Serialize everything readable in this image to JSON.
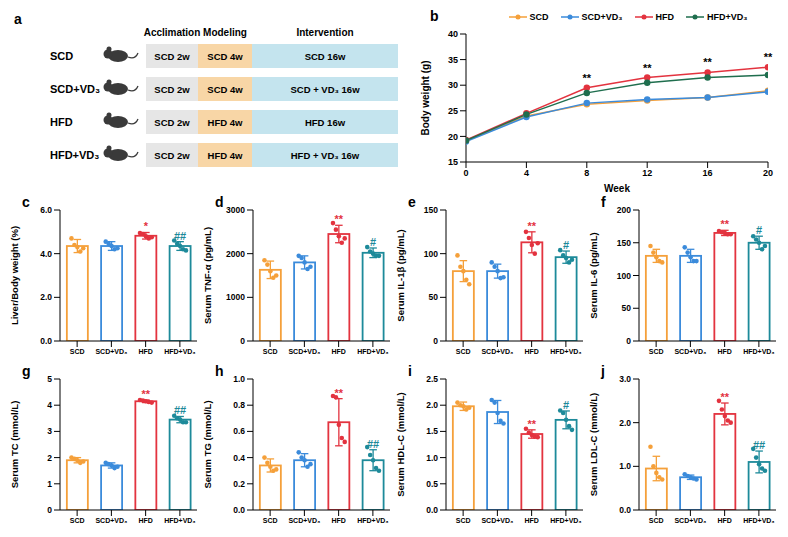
{
  "diagram": {
    "panel_label": "a",
    "headers": [
      "Acclimation",
      "Modeling",
      "Intervention"
    ],
    "rows": [
      {
        "group": "SCD",
        "stages": [
          "SCD 2w",
          "SCD 4w",
          "SCD 16w"
        ]
      },
      {
        "group": "SCD+VD₃",
        "stages": [
          "SCD 2w",
          "SCD 4w",
          "SCD + VD₃ 16w"
        ]
      },
      {
        "group": "HFD",
        "stages": [
          "SCD 2w",
          "HFD 4w",
          "HFD 16w"
        ]
      },
      {
        "group": "HFD+VD₃",
        "stages": [
          "SCD 2w",
          "HFD 4w",
          "HFD + VD₃ 16w"
        ]
      }
    ]
  },
  "chart_data": [
    {
      "panel_label": "b",
      "type": "line",
      "x_label": "Week",
      "y_label": "Body weight (g)",
      "x": [
        0,
        4,
        8,
        12,
        16,
        20
      ],
      "xlim": [
        0,
        20
      ],
      "xticks": [
        0,
        4,
        8,
        12,
        16,
        20
      ],
      "ylim": [
        15,
        40
      ],
      "yticks": [
        15,
        20,
        25,
        30,
        35,
        40
      ],
      "legend": "top",
      "marker": "circle",
      "series": [
        {
          "name": "SCD",
          "color": "#f5a03a",
          "values": [
            19.2,
            24.0,
            26.3,
            27.0,
            27.6,
            28.9
          ]
        },
        {
          "name": "SCD+VD₃",
          "color": "#3b8bdb",
          "values": [
            19.0,
            23.8,
            26.5,
            27.2,
            27.6,
            28.7
          ]
        },
        {
          "name": "HFD",
          "color": "#e3333f",
          "values": [
            19.3,
            24.5,
            29.5,
            31.5,
            32.5,
            33.5
          ]
        },
        {
          "name": "HFD+VD₃",
          "color": "#1f6e4e",
          "values": [
            19.2,
            24.3,
            28.5,
            30.5,
            31.5,
            32.0
          ]
        }
      ],
      "annotations": [
        {
          "x": 8,
          "text": "**"
        },
        {
          "x": 12,
          "text": "**"
        },
        {
          "x": 16,
          "text": "**"
        },
        {
          "x": 20,
          "text": "**"
        }
      ]
    },
    {
      "panel_label": "c",
      "type": "bar",
      "y_label": "Liver/Body weight (%)",
      "categories": [
        "SCD",
        "SCD+VD₃",
        "HFD",
        "HFD+VD₃"
      ],
      "values": [
        4.35,
        4.35,
        4.82,
        4.35
      ],
      "errors": [
        0.3,
        0.2,
        0.15,
        0.2
      ],
      "points": [
        [
          4.7,
          4.4,
          4.3,
          4.1,
          4.25
        ],
        [
          4.55,
          4.45,
          4.35,
          4.2,
          4.25
        ],
        [
          4.95,
          4.9,
          4.8,
          4.7,
          4.75
        ],
        [
          4.6,
          4.45,
          4.35,
          4.2,
          4.15
        ]
      ],
      "colors": [
        "#f5a03a",
        "#3b8bdb",
        "#e3333f",
        "#1d8a9a"
      ],
      "annotations": [
        null,
        null,
        "*",
        "##"
      ],
      "ylim": [
        0,
        6
      ],
      "yticks": [
        {
          "value": 0,
          "label": "0.0"
        },
        {
          "value": 2,
          "label": "2.0"
        },
        {
          "value": 4,
          "label": "4.0"
        },
        {
          "value": 6,
          "label": "6.0"
        }
      ]
    },
    {
      "panel_label": "d",
      "type": "bar",
      "y_label": "Serum TNF-α (pg/mL)",
      "categories": [
        "SCD",
        "SCD+VD₃",
        "HFD",
        "HFD+VD₃"
      ],
      "values": [
        1630,
        1800,
        2450,
        2020
      ],
      "errors": [
        200,
        150,
        200,
        110
      ],
      "points": [
        [
          1850,
          1750,
          1600,
          1450,
          1500
        ],
        [
          1950,
          1900,
          1800,
          1650,
          1700
        ],
        [
          2700,
          2550,
          2400,
          2250,
          2350
        ],
        [
          2150,
          2050,
          2000,
          1950,
          1950
        ]
      ],
      "colors": [
        "#f5a03a",
        "#3b8bdb",
        "#e3333f",
        "#1d8a9a"
      ],
      "annotations": [
        null,
        null,
        "**",
        "#"
      ],
      "ylim": [
        0,
        3000
      ],
      "yticks": [
        0,
        1000,
        2000,
        3000
      ]
    },
    {
      "panel_label": "e",
      "type": "bar",
      "y_label": "Serum IL-1β (pg/mL)",
      "categories": [
        "SCD",
        "SCD+VD₃",
        "HFD",
        "HFD+VD₃"
      ],
      "values": [
        80,
        80,
        113,
        96
      ],
      "errors": [
        12,
        8,
        12,
        7
      ],
      "points": [
        [
          98,
          85,
          80,
          70,
          65
        ],
        [
          90,
          85,
          80,
          72,
          73
        ],
        [
          125,
          118,
          110,
          100,
          112
        ],
        [
          104,
          98,
          95,
          90,
          93
        ]
      ],
      "colors": [
        "#f5a03a",
        "#3b8bdb",
        "#e3333f",
        "#1d8a9a"
      ],
      "annotations": [
        null,
        null,
        "**",
        "#"
      ],
      "ylim": [
        0,
        150
      ],
      "yticks": [
        0,
        50,
        100,
        150
      ]
    },
    {
      "panel_label": "f",
      "type": "bar",
      "y_label": "Serum IL-6 (pg/mL)",
      "categories": [
        "SCD",
        "SCD+VD₃",
        "HFD",
        "HFD+VD₃"
      ],
      "values": [
        130,
        130,
        165,
        150
      ],
      "errors": [
        10,
        10,
        4,
        10
      ],
      "points": [
        [
          145,
          135,
          128,
          122,
          120
        ],
        [
          143,
          135,
          128,
          122,
          122
        ],
        [
          168,
          166,
          165,
          163,
          163
        ],
        [
          160,
          155,
          150,
          140,
          145
        ]
      ],
      "colors": [
        "#f5a03a",
        "#3b8bdb",
        "#e3333f",
        "#1d8a9a"
      ],
      "annotations": [
        null,
        null,
        "**",
        "#"
      ],
      "ylim": [
        0,
        200
      ],
      "yticks": [
        0,
        50,
        100,
        150,
        200
      ]
    },
    {
      "panel_label": "g",
      "type": "bar",
      "y_label": "Serum TC (mmol/L)",
      "categories": [
        "SCD",
        "SCD+VD₃",
        "HFD",
        "HFD+VD₃"
      ],
      "values": [
        1.9,
        1.7,
        4.15,
        3.45
      ],
      "errors": [
        0.1,
        0.1,
        0.05,
        0.12
      ],
      "points": [
        [
          2.0,
          1.95,
          1.9,
          1.8,
          1.85
        ],
        [
          1.8,
          1.75,
          1.7,
          1.6,
          1.65
        ],
        [
          4.2,
          4.18,
          4.15,
          4.12,
          4.1
        ],
        [
          3.6,
          3.5,
          3.45,
          3.35,
          3.35
        ]
      ],
      "colors": [
        "#f5a03a",
        "#3b8bdb",
        "#e3333f",
        "#1d8a9a"
      ],
      "annotations": [
        null,
        null,
        "**",
        "##"
      ],
      "ylim": [
        0,
        5
      ],
      "yticks": [
        0,
        1,
        2,
        3,
        4,
        5
      ]
    },
    {
      "panel_label": "h",
      "type": "bar",
      "y_label": "Serum TG (mmol/L)",
      "categories": [
        "SCD",
        "SCD+VD₃",
        "HFD",
        "HFD+VD₃"
      ],
      "values": [
        0.34,
        0.38,
        0.67,
        0.38
      ],
      "errors": [
        0.05,
        0.05,
        0.18,
        0.08
      ],
      "points": [
        [
          0.4,
          0.36,
          0.33,
          0.3,
          0.31
        ],
        [
          0.44,
          0.4,
          0.38,
          0.33,
          0.35
        ],
        [
          0.87,
          0.86,
          0.65,
          0.55,
          0.52
        ],
        [
          0.48,
          0.42,
          0.38,
          0.32,
          0.3
        ]
      ],
      "colors": [
        "#f5a03a",
        "#3b8bdb",
        "#e3333f",
        "#1d8a9a"
      ],
      "annotations": [
        null,
        null,
        "**",
        "##"
      ],
      "ylim": [
        0,
        1.0
      ],
      "yticks": [
        {
          "value": 0,
          "label": "0.0"
        },
        0.2,
        0.4,
        0.6,
        0.8,
        {
          "value": 1.0,
          "label": "1.0"
        }
      ]
    },
    {
      "panel_label": "i",
      "type": "bar",
      "y_label": "Serum HDL-C (mmol/L)",
      "categories": [
        "SCD",
        "SCD+VD₃",
        "HFD",
        "HFD+VD₃"
      ],
      "values": [
        1.98,
        1.87,
        1.45,
        1.72
      ],
      "errors": [
        0.08,
        0.22,
        0.08,
        0.17
      ],
      "points": [
        [
          2.05,
          2.0,
          1.98,
          1.92,
          1.95
        ],
        [
          2.1,
          2.05,
          1.85,
          1.7,
          1.65
        ],
        [
          1.55,
          1.48,
          1.43,
          1.4,
          1.39
        ],
        [
          1.9,
          1.85,
          1.72,
          1.6,
          1.53
        ]
      ],
      "colors": [
        "#f5a03a",
        "#3b8bdb",
        "#e3333f",
        "#1d8a9a"
      ],
      "annotations": [
        null,
        null,
        "**",
        "#"
      ],
      "ylim": [
        0,
        2.5
      ],
      "yticks": [
        {
          "value": 0,
          "label": "0.0"
        },
        0.5,
        {
          "value": 1.0,
          "label": "1.0"
        },
        1.5,
        {
          "value": 2.0,
          "label": "2.0"
        },
        2.5
      ]
    },
    {
      "panel_label": "j",
      "type": "bar",
      "y_label": "Serum LDL-C (mmol/L)",
      "categories": [
        "SCD",
        "SCD+VD₃",
        "HFD",
        "HFD+VD₃"
      ],
      "values": [
        0.95,
        0.75,
        2.2,
        1.1
      ],
      "errors": [
        0.28,
        0.05,
        0.25,
        0.25
      ],
      "points": [
        [
          1.45,
          1.0,
          0.85,
          0.75,
          0.7
        ],
        [
          0.82,
          0.78,
          0.75,
          0.72,
          0.7
        ],
        [
          2.5,
          2.3,
          2.15,
          2.05,
          2.0
        ],
        [
          1.4,
          1.2,
          1.05,
          0.95,
          0.9
        ]
      ],
      "colors": [
        "#f5a03a",
        "#3b8bdb",
        "#e3333f",
        "#1d8a9a"
      ],
      "annotations": [
        null,
        null,
        "**",
        "##"
      ],
      "ylim": [
        0,
        3.0
      ],
      "yticks": [
        {
          "value": 0,
          "label": "0.0"
        },
        {
          "value": 1.0,
          "label": "1.0"
        },
        {
          "value": 2.0,
          "label": "2.0"
        },
        {
          "value": 3.0,
          "label": "3.0"
        }
      ]
    }
  ]
}
